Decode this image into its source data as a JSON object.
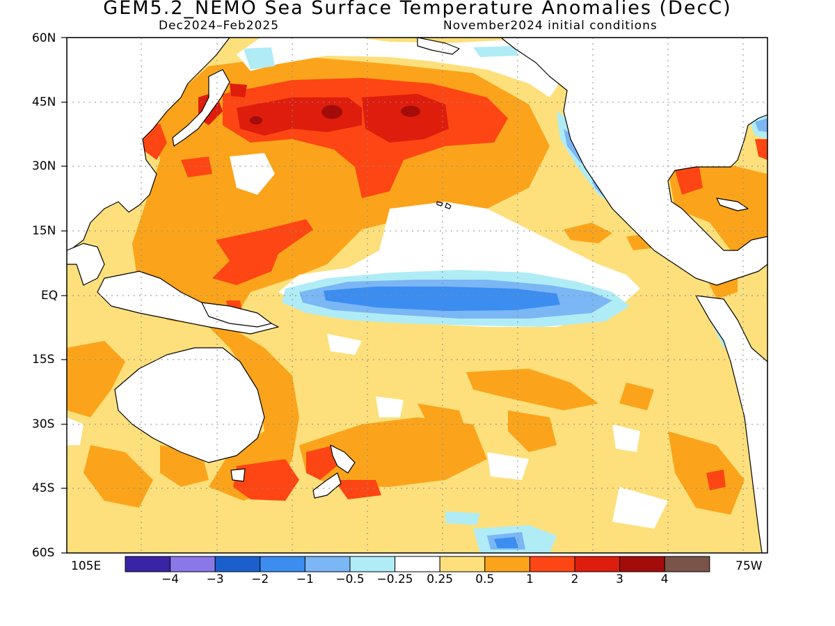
{
  "title": "GEM5.2_NEMO Sea Surface Temperature Anomalies (DecC)",
  "subtitle_left": "Dec2024–Feb2025",
  "subtitle_right": "November2024 initial conditions",
  "lat_labels": [
    "60N",
    "45N",
    "30N",
    "15N",
    "EQ",
    "15S",
    "30S",
    "45S",
    "60S"
  ],
  "lon_labels": {
    "west": "105E",
    "east": "75W"
  },
  "colorbar": {
    "colors": [
      "#3a24a6",
      "#8b78e8",
      "#1b5fcd",
      "#3c8df0",
      "#7bb6f5",
      "#b0ecf5",
      "#ffffff",
      "#fde07c",
      "#fba41b",
      "#fd4613",
      "#de1d0d",
      "#a40c0b",
      "#7a5448"
    ],
    "labels": [
      "−4",
      "−3",
      "−2",
      "−1",
      "−0.5",
      "−0.25",
      "0.25",
      "0.5",
      "1",
      "2",
      "3",
      "4"
    ]
  },
  "colors": {
    "background": "#fde07c",
    "land": "#ffffff",
    "coast": "#000000",
    "grid": "#8a8a8a"
  }
}
